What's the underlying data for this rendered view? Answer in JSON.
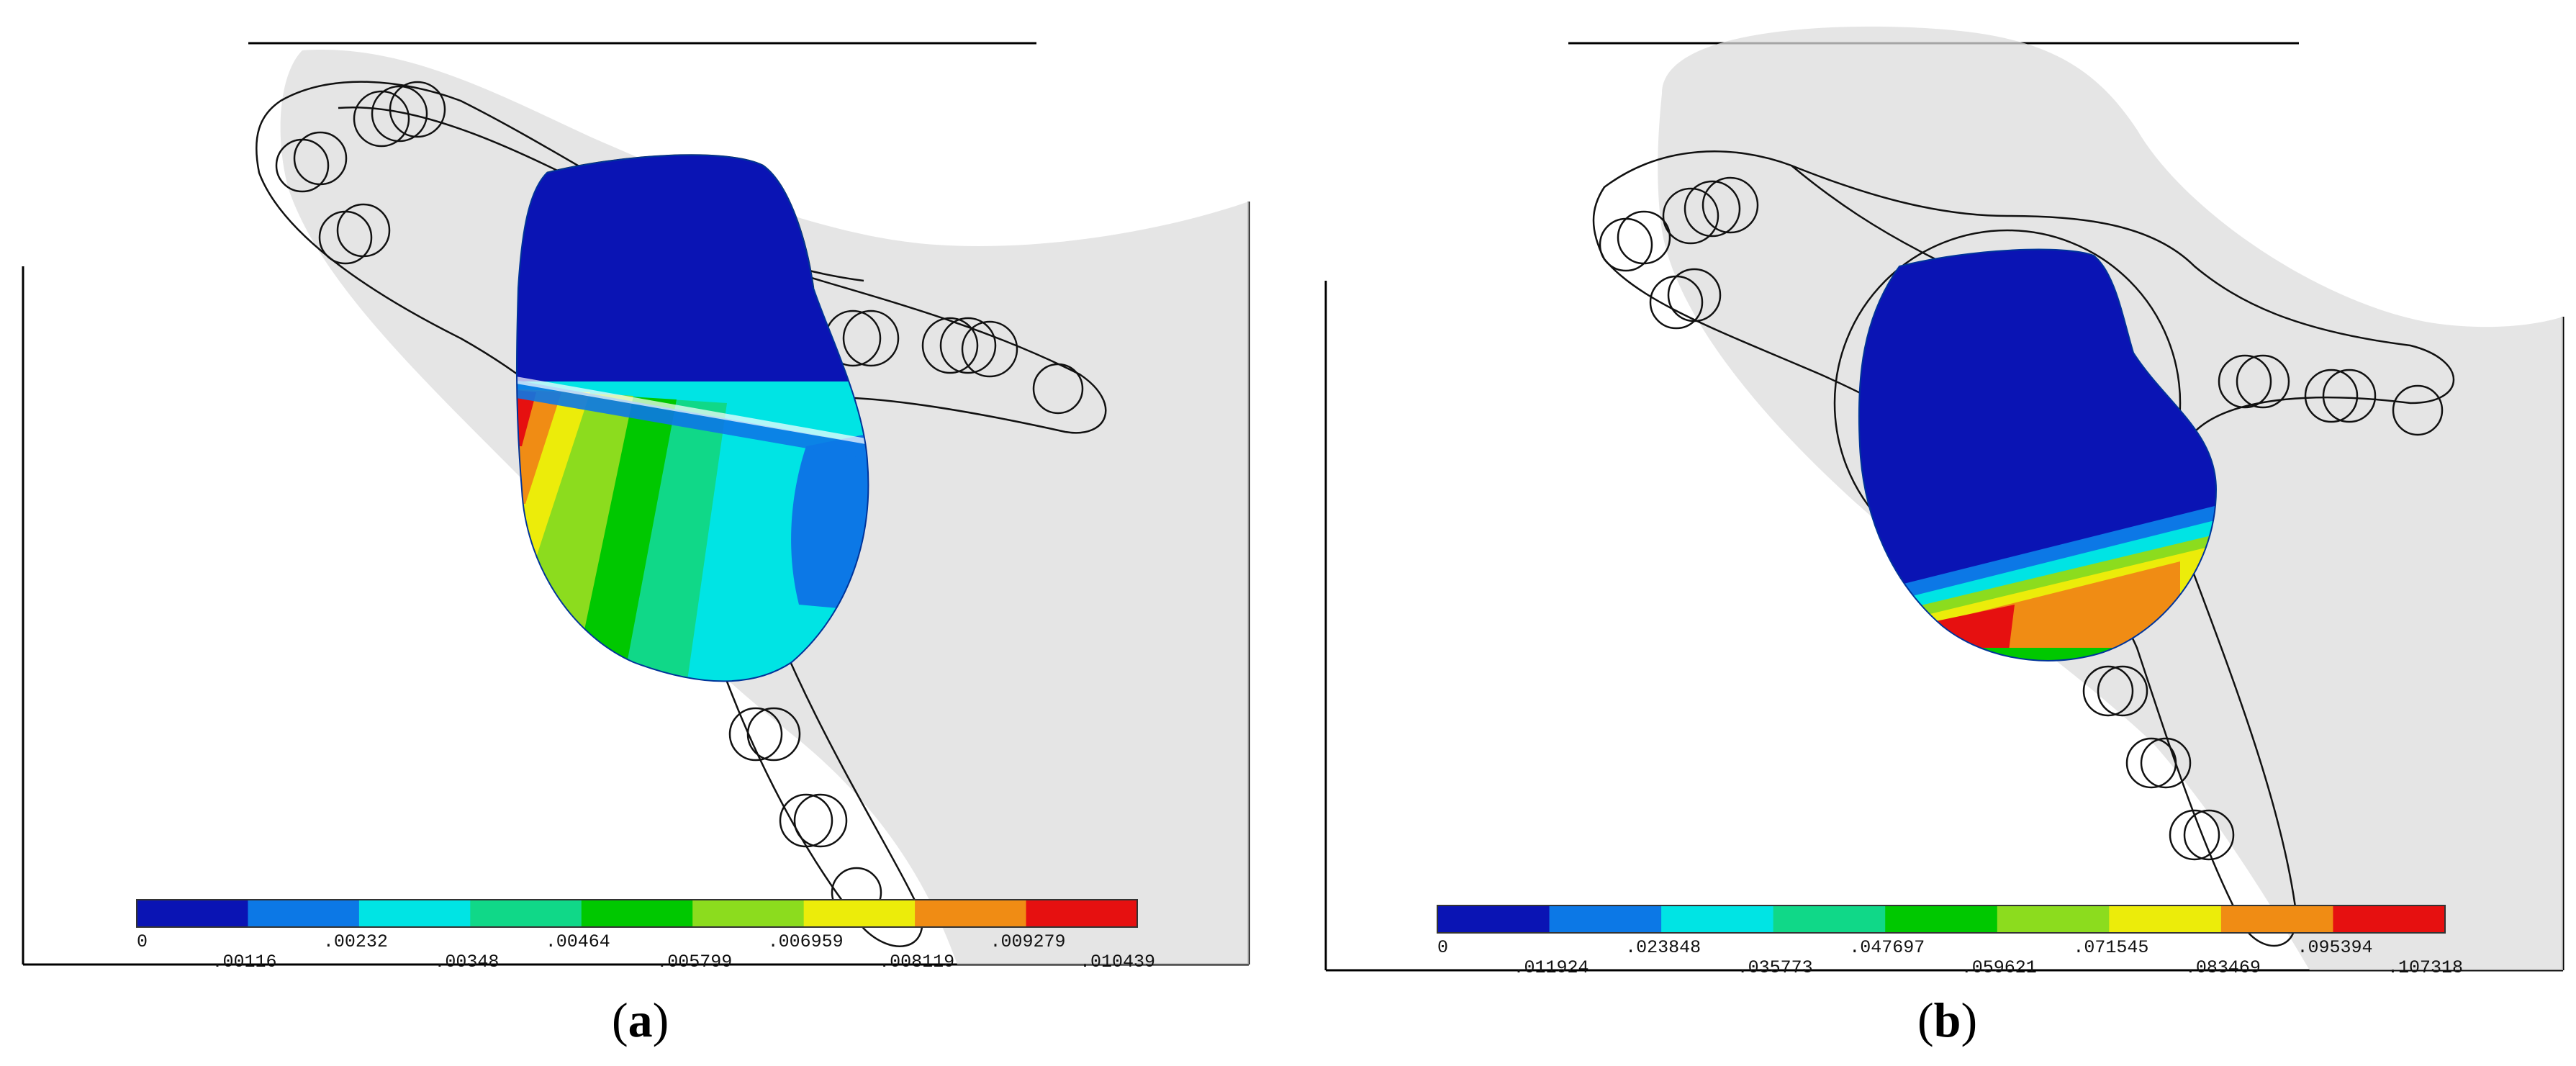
{
  "panels": [
    {
      "id": "a",
      "caption": {
        "open": "(",
        "letter": "a",
        "close": ")"
      },
      "colorbar": {
        "ticks_top": [
          "0",
          ".00232",
          ".00464",
          ".006959",
          ".009279"
        ],
        "ticks_bottom": [
          ".00116",
          ".00348",
          ".005799",
          ".008119",
          ".010439"
        ],
        "colors": [
          "#0a14b4",
          "#0c78e6",
          "#00e4e4",
          "#10d888",
          "#00c800",
          "#8cdc1e",
          "#ecec0a",
          "#f08c14",
          "#e61010"
        ]
      }
    },
    {
      "id": "b",
      "caption": {
        "open": "(",
        "letter": "b",
        "close": ")"
      },
      "colorbar": {
        "ticks_top": [
          "0",
          ".023848",
          ".047697",
          ".071545",
          ".095394"
        ],
        "ticks_bottom": [
          ".011924",
          ".035773",
          ".059621",
          ".083469",
          ".107318"
        ],
        "colors": [
          "#0a14b4",
          "#0c78e6",
          "#00e4e4",
          "#10d888",
          "#00c800",
          "#8cdc1e",
          "#ecec0a",
          "#f08c14",
          "#e61010"
        ]
      }
    }
  ]
}
